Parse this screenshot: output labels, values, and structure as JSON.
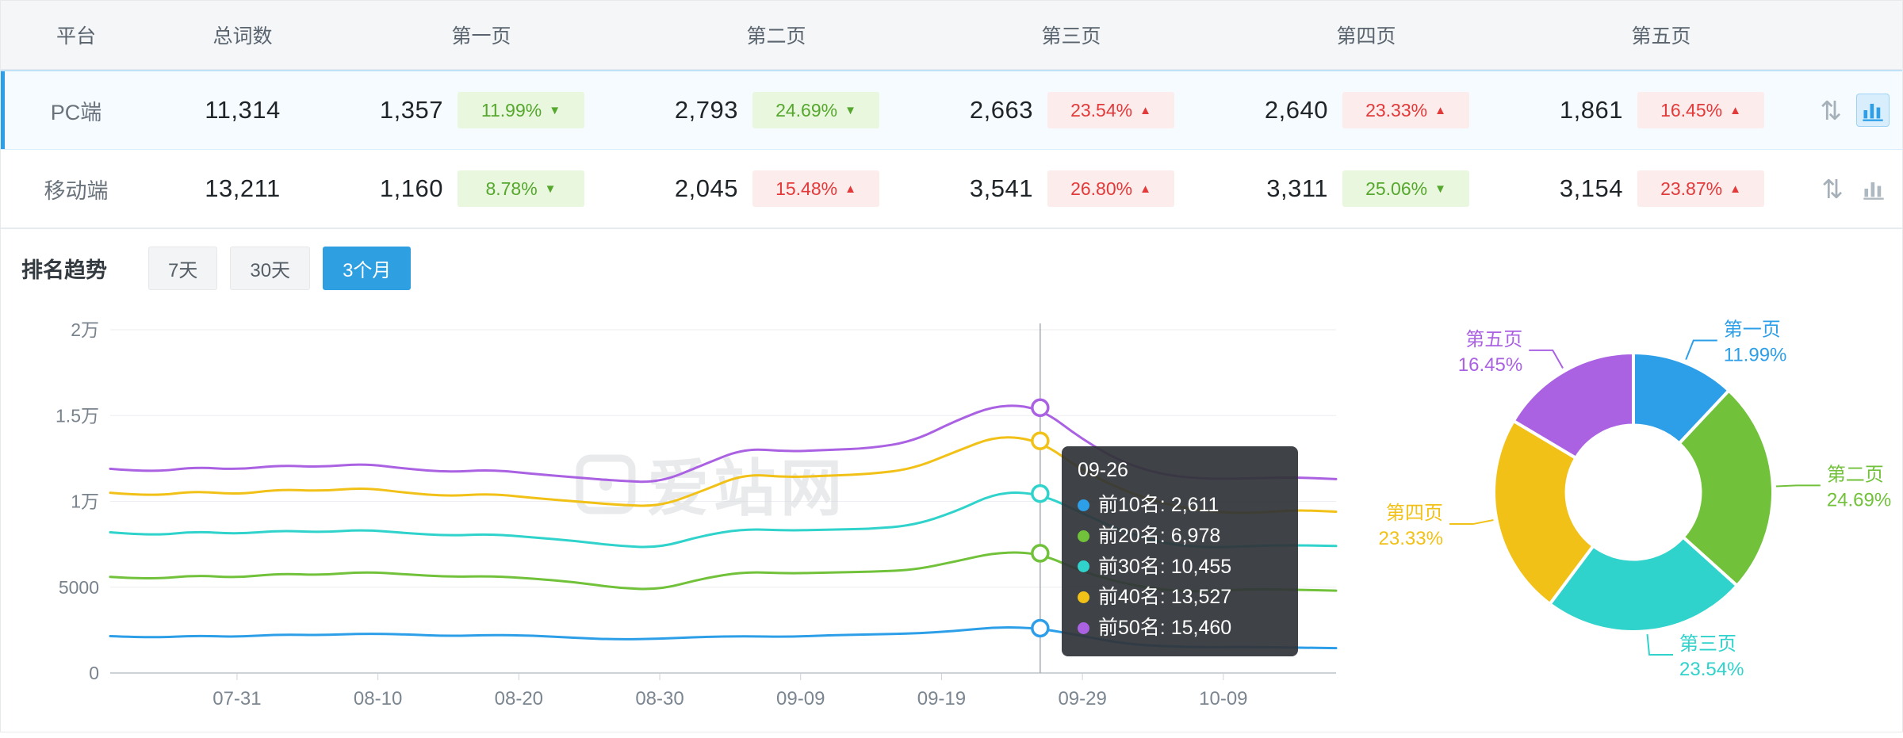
{
  "page": {
    "watermark": "爱站网"
  },
  "table": {
    "headers": [
      "平台",
      "总词数",
      "第一页",
      "第二页",
      "第三页",
      "第四页",
      "第五页"
    ],
    "rows": [
      {
        "platform": "PC端",
        "total": "11,314",
        "selected": true,
        "pages": [
          {
            "value": "1,357",
            "pct": "11.99%",
            "dir": "down"
          },
          {
            "value": "2,793",
            "pct": "24.69%",
            "dir": "down"
          },
          {
            "value": "2,663",
            "pct": "23.54%",
            "dir": "up"
          },
          {
            "value": "2,640",
            "pct": "23.33%",
            "dir": "up"
          },
          {
            "value": "1,861",
            "pct": "16.45%",
            "dir": "up"
          }
        ]
      },
      {
        "platform": "移动端",
        "total": "13,211",
        "selected": false,
        "pages": [
          {
            "value": "1,160",
            "pct": "8.78%",
            "dir": "down"
          },
          {
            "value": "2,045",
            "pct": "15.48%",
            "dir": "up"
          },
          {
            "value": "3,541",
            "pct": "26.80%",
            "dir": "up"
          },
          {
            "value": "3,311",
            "pct": "25.06%",
            "dir": "down"
          },
          {
            "value": "3,154",
            "pct": "23.87%",
            "dir": "up"
          }
        ]
      }
    ]
  },
  "trend": {
    "title": "排名趋势",
    "tabs": [
      "7天",
      "30天",
      "3个月"
    ],
    "active_tab": "3个月"
  },
  "tooltip": {
    "title": "09-26",
    "items": [
      {
        "text": "前10名: 2,611",
        "color": "#2d9fe8"
      },
      {
        "text": "前20名: 6,978",
        "color": "#71c23a"
      },
      {
        "text": "前30名: 10,455",
        "color": "#2fd3cb"
      },
      {
        "text": "前40名: 13,527",
        "color": "#f2c118"
      },
      {
        "text": "前50名: 15,460",
        "color": "#aa62e3"
      }
    ]
  },
  "chart_data": [
    {
      "type": "line",
      "title": "排名趋势(3个月)",
      "ylim": [
        0,
        20000
      ],
      "y_ticks": [
        {
          "v": 0,
          "label": "0"
        },
        {
          "v": 5000,
          "label": "5000"
        },
        {
          "v": 10000,
          "label": "1万"
        },
        {
          "v": 15000,
          "label": "1.5万"
        },
        {
          "v": 20000,
          "label": "2万"
        }
      ],
      "x_tick_labels": [
        "07-31",
        "08-10",
        "08-20",
        "08-30",
        "09-09",
        "09-19",
        "09-29",
        "10-09"
      ],
      "highlight_date": "09-26",
      "x_dates": [
        "07-22",
        "07-25",
        "07-28",
        "07-31",
        "08-03",
        "08-06",
        "08-09",
        "08-12",
        "08-15",
        "08-18",
        "08-21",
        "08-24",
        "08-27",
        "08-30",
        "09-02",
        "09-05",
        "09-08",
        "09-11",
        "09-14",
        "09-17",
        "09-20",
        "09-23",
        "09-26",
        "09-29",
        "10-02",
        "10-05",
        "10-08",
        "10-11",
        "10-14",
        "10-17"
      ],
      "series": [
        {
          "name": "前10名",
          "color": "#2d9fe8",
          "values": [
            2150,
            2050,
            2180,
            2100,
            2250,
            2200,
            2300,
            2250,
            2150,
            2220,
            2180,
            2050,
            1950,
            2000,
            2100,
            2150,
            2100,
            2200,
            2250,
            2300,
            2450,
            2680,
            2611,
            2150,
            1700,
            1550,
            1500,
            1520,
            1480,
            1450
          ]
        },
        {
          "name": "前20名",
          "color": "#71c23a",
          "values": [
            5600,
            5450,
            5700,
            5550,
            5800,
            5700,
            5900,
            5750,
            5600,
            5650,
            5500,
            5300,
            4950,
            4850,
            5500,
            5900,
            5800,
            5850,
            5900,
            6000,
            6500,
            7050,
            6978,
            5900,
            5200,
            4800,
            4750,
            4900,
            4850,
            4800
          ]
        },
        {
          "name": "前30名",
          "color": "#2fd3cb",
          "values": [
            8200,
            8000,
            8250,
            8100,
            8300,
            8200,
            8350,
            8150,
            8000,
            8100,
            7900,
            7700,
            7400,
            7300,
            8000,
            8400,
            8300,
            8350,
            8400,
            8600,
            9400,
            10550,
            10455,
            9300,
            8200,
            7500,
            7300,
            7400,
            7450,
            7400
          ]
        },
        {
          "name": "前40名",
          "color": "#f2c118",
          "values": [
            10500,
            10300,
            10600,
            10400,
            10700,
            10600,
            10800,
            10500,
            10300,
            10450,
            10200,
            10000,
            9800,
            9700,
            10600,
            11600,
            11400,
            11500,
            11600,
            11900,
            12900,
            13850,
            13527,
            11800,
            10600,
            9800,
            9400,
            9300,
            9500,
            9400
          ]
        },
        {
          "name": "前50名",
          "color": "#aa62e3",
          "values": [
            11900,
            11700,
            12000,
            11850,
            12100,
            12000,
            12200,
            11900,
            11700,
            11850,
            11600,
            11400,
            11200,
            11100,
            12100,
            13100,
            12900,
            13000,
            13100,
            13500,
            14700,
            15650,
            15460,
            13600,
            12200,
            11500,
            11300,
            11350,
            11400,
            11300
          ]
        }
      ]
    },
    {
      "type": "pie",
      "inner_ratio": 0.48,
      "slices": [
        {
          "label": "第一页",
          "pct": 11.99,
          "color": "#2d9fe8"
        },
        {
          "label": "第二页",
          "pct": 24.69,
          "color": "#71c23a"
        },
        {
          "label": "第三页",
          "pct": 23.54,
          "color": "#2fd3cb"
        },
        {
          "label": "第四页",
          "pct": 23.33,
          "color": "#f2c118"
        },
        {
          "label": "第五页",
          "pct": 16.45,
          "color": "#aa62e3"
        }
      ]
    }
  ]
}
